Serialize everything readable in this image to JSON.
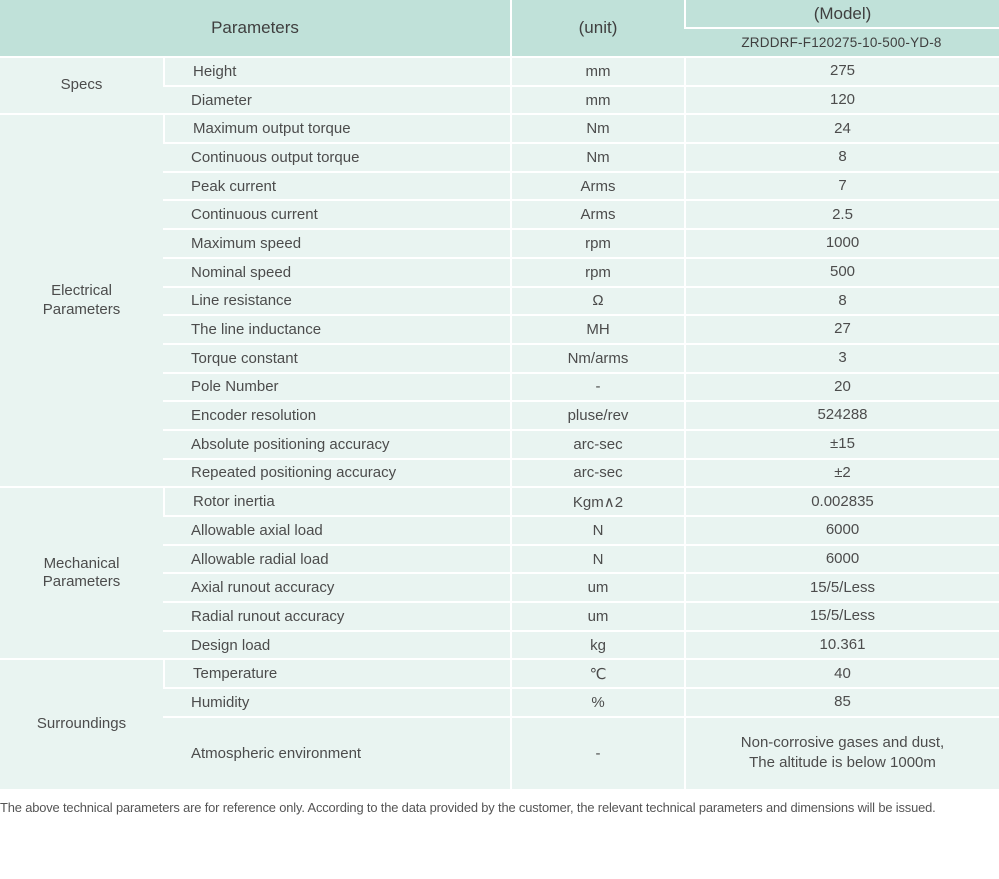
{
  "header": {
    "parameters_label": "Parameters",
    "unit_label": "(unit)",
    "model_label": "(Model)",
    "model_value": "ZRDDRF-F120275-10-500-YD-8"
  },
  "groups": [
    {
      "name": "Specs",
      "rows": [
        {
          "parameter": "Height",
          "unit": "mm",
          "value": "275"
        },
        {
          "parameter": "Diameter",
          "unit": "mm",
          "value": "120"
        }
      ]
    },
    {
      "name": "Electrical\nParameters",
      "rows": [
        {
          "parameter": "Maximum output torque",
          "unit": "Nm",
          "value": "24"
        },
        {
          "parameter": "Continuous output torque",
          "unit": "Nm",
          "value": "8"
        },
        {
          "parameter": "Peak current",
          "unit": "Arms",
          "value": "7"
        },
        {
          "parameter": "Continuous current",
          "unit": "Arms",
          "value": "2.5"
        },
        {
          "parameter": "Maximum speed",
          "unit": "rpm",
          "value": "1000"
        },
        {
          "parameter": "Nominal speed",
          "unit": "rpm",
          "value": "500"
        },
        {
          "parameter": "Line resistance",
          "unit": "Ω",
          "value": "8"
        },
        {
          "parameter": "The line inductance",
          "unit": "MH",
          "value": "27"
        },
        {
          "parameter": "Torque constant",
          "unit": "Nm/arms",
          "value": "3"
        },
        {
          "parameter": "Pole Number",
          "unit": "-",
          "value": "20"
        },
        {
          "parameter": "Encoder resolution",
          "unit": "pluse/rev",
          "value": "524288"
        },
        {
          "parameter": "Absolute positioning accuracy",
          "unit": "arc-sec",
          "value": "±15"
        },
        {
          "parameter": "Repeated positioning accuracy",
          "unit": "arc-sec",
          "value": "±2"
        }
      ]
    },
    {
      "name": "Mechanical\nParameters",
      "rows": [
        {
          "parameter": "Rotor inertia",
          "unit": "Kgm∧2",
          "value": "0.002835"
        },
        {
          "parameter": "Allowable axial load",
          "unit": "N",
          "value": "6000"
        },
        {
          "parameter": "Allowable radial load",
          "unit": "N",
          "value": "6000"
        },
        {
          "parameter": "Axial runout accuracy",
          "unit": "um",
          "value": "15/5/Less"
        },
        {
          "parameter": "Radial runout accuracy",
          "unit": "um",
          "value": "15/5/Less"
        },
        {
          "parameter": "Design load",
          "unit": "kg",
          "value": "10.361"
        }
      ]
    },
    {
      "name": "Surroundings",
      "rows": [
        {
          "parameter": "Temperature",
          "unit": "℃",
          "value": "40"
        },
        {
          "parameter": "Humidity",
          "unit": "%",
          "value": "85"
        },
        {
          "parameter": "Atmospheric environment",
          "unit": "-",
          "value": "Non-corrosive gases and dust,\nThe altitude is below 1000m",
          "tall": true
        }
      ]
    }
  ],
  "footer": {
    "note": "The above technical parameters are for reference only. According to the data provided by the customer, the relevant technical parameters and dimensions will be issued."
  },
  "colors": {
    "header_bg": "#c0e1d9",
    "row_bg": "#e9f4f1",
    "text_dark": "#3f3f3f",
    "text_body": "#4c4c4c"
  }
}
